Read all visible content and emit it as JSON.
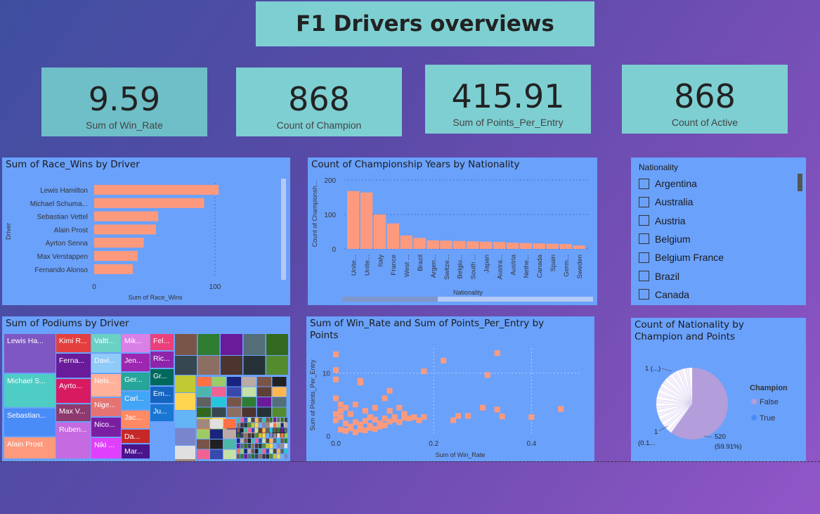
{
  "title": "F1 Drivers overviews",
  "kpis": [
    {
      "value": "9.59",
      "label": "Sum of Win_Rate"
    },
    {
      "value": "868",
      "label": "Count of Champion"
    },
    {
      "value": "415.91",
      "label": "Sum of Points_Per_Entry"
    },
    {
      "value": "868",
      "label": "Count of Active"
    }
  ],
  "slicer": {
    "header": "Nationality",
    "items": [
      "Argentina",
      "Australia",
      "Austria",
      "Belgium",
      "Belgium France",
      "Brazil",
      "Canada"
    ]
  },
  "colors": {
    "bar": "#fd9a7d",
    "panel": "#6aa1fb",
    "kpi": "#7ecfd2",
    "pie_false": "#b39ddb",
    "pie_true": "#4a8cf7"
  },
  "chart_data": [
    {
      "id": "race-wins",
      "type": "bar",
      "orientation": "horizontal",
      "title": "Sum of Race_Wins by Driver",
      "xlabel": "Sum of Race_Wins",
      "ylabel": "Driver",
      "categories": [
        "Lewis Hamilton",
        "Michael Schuma...",
        "Sebastian Vettel",
        "Alain Prost",
        "Ayrton Senna",
        "Max Verstappen",
        "Fernando Alonso"
      ],
      "values": [
        103,
        91,
        53,
        51,
        41,
        36,
        32
      ],
      "xlim": [
        0,
        160
      ],
      "xticks": [
        "0",
        "100"
      ]
    },
    {
      "id": "championship-years",
      "type": "bar",
      "title": "Count of Championship Years by Nationality",
      "xlabel": "Nationality",
      "ylabel": "Count of Championsh...",
      "categories": [
        "Unite...",
        "Unite...",
        "Italy",
        "France",
        "West ...",
        "Brazil",
        "Argen...",
        "Switze...",
        "Belgiu...",
        "South ...",
        "Japan",
        "Austra...",
        "Austria",
        "Nethe...",
        "Canada",
        "Spain",
        "Germ...",
        "Sweden"
      ],
      "values": [
        168,
        164,
        100,
        74,
        39,
        32,
        25,
        24,
        23,
        22,
        21,
        20,
        18,
        17,
        16,
        15,
        14,
        10
      ],
      "ylim": [
        0,
        200
      ],
      "yticks": [
        "0",
        "100",
        "200"
      ]
    },
    {
      "id": "podiums",
      "type": "treemap",
      "title": "Sum of Podiums by Driver",
      "labels": [
        "Lewis Ha...",
        "Michael S...",
        "Sebastian...",
        "Alain Prost",
        "Kimi R...",
        "Ferna...",
        "Ayrto...",
        "Max V...",
        "Ruben...",
        "Valtt...",
        "Davi...",
        "Nels...",
        "Nige...",
        "Nico...",
        "Niki ...",
        "Mik...",
        "Jen...",
        "Ger...",
        "Carl...",
        "Jac...",
        "Da...",
        "Mar...",
        "Fel...",
        "Ric...",
        "Gr...",
        "Em...",
        "Ju..."
      ]
    },
    {
      "id": "winrate-points",
      "type": "scatter",
      "title": "Sum of Win_Rate and Sum of Points_Per_Entry by",
      "title_line2": "Points",
      "xlabel": "Sum of Win_Rate",
      "ylabel": "Sum of Points_Per_Entry",
      "xlim": [
        0,
        0.5
      ],
      "ylim": [
        0,
        14
      ],
      "xticks": [
        "0.0",
        "0.2",
        "0.4"
      ],
      "yticks": [
        "0",
        "10"
      ],
      "points": [
        [
          0.0,
          13
        ],
        [
          0.0,
          10.5
        ],
        [
          0.0,
          9
        ],
        [
          0.0,
          6
        ],
        [
          0.01,
          5
        ],
        [
          0.01,
          4
        ],
        [
          0.02,
          4.5
        ],
        [
          0.03,
          3.5
        ],
        [
          0.04,
          5
        ],
        [
          0.05,
          8.5
        ],
        [
          0.05,
          8.8
        ],
        [
          0.06,
          4
        ],
        [
          0.07,
          3
        ],
        [
          0.08,
          4.5
        ],
        [
          0.1,
          6
        ],
        [
          0.11,
          7.2
        ],
        [
          0.11,
          4
        ],
        [
          0.12,
          3
        ],
        [
          0.13,
          4.5
        ],
        [
          0.14,
          3.5
        ],
        [
          0.15,
          2.8
        ],
        [
          0.16,
          3
        ],
        [
          0.17,
          2.5
        ],
        [
          0.18,
          10.3
        ],
        [
          0.18,
          3
        ],
        [
          0.22,
          12
        ],
        [
          0.24,
          2.5
        ],
        [
          0.25,
          3.2
        ],
        [
          0.27,
          3.2
        ],
        [
          0.3,
          4.5
        ],
        [
          0.31,
          9.7
        ],
        [
          0.33,
          13.2
        ],
        [
          0.33,
          4.2
        ],
        [
          0.34,
          3.1
        ],
        [
          0.4,
          3
        ],
        [
          0.46,
          4.3
        ],
        [
          0.02,
          2
        ],
        [
          0.03,
          1.5
        ],
        [
          0.04,
          2.2
        ],
        [
          0.05,
          1.8
        ],
        [
          0.06,
          2.4
        ],
        [
          0.07,
          1.6
        ],
        [
          0.08,
          2.6
        ],
        [
          0.09,
          2.0
        ],
        [
          0.1,
          2.8
        ],
        [
          0.11,
          2.3
        ],
        [
          0.12,
          2.6
        ],
        [
          0.13,
          2.2
        ],
        [
          0.14,
          2.9
        ],
        [
          0.01,
          1
        ],
        [
          0.02,
          0.8
        ],
        [
          0.03,
          1.2
        ],
        [
          0.04,
          0.6
        ],
        [
          0.05,
          1.0
        ],
        [
          0.06,
          0.9
        ],
        [
          0.07,
          1.3
        ],
        [
          0.08,
          1.1
        ],
        [
          0.09,
          1.5
        ],
        [
          0.1,
          1.7
        ],
        [
          0.0,
          2.5
        ],
        [
          0.0,
          3.5
        ],
        [
          0.01,
          3
        ]
      ]
    },
    {
      "id": "nationality-pie",
      "type": "pie",
      "title": "Count of Nationality by",
      "title_line2": "Champion and Points",
      "legend_title": "Champion",
      "legend": [
        "False",
        "True"
      ],
      "slices": [
        {
          "label": "520",
          "pct": "(59.91%)",
          "value": 520
        }
      ],
      "labels": {
        "top": "1 (...)",
        "bottom1": "1",
        "bottom2": "(0.1...",
        "main": "520",
        "main_pct": "(59.91%)"
      }
    }
  ]
}
